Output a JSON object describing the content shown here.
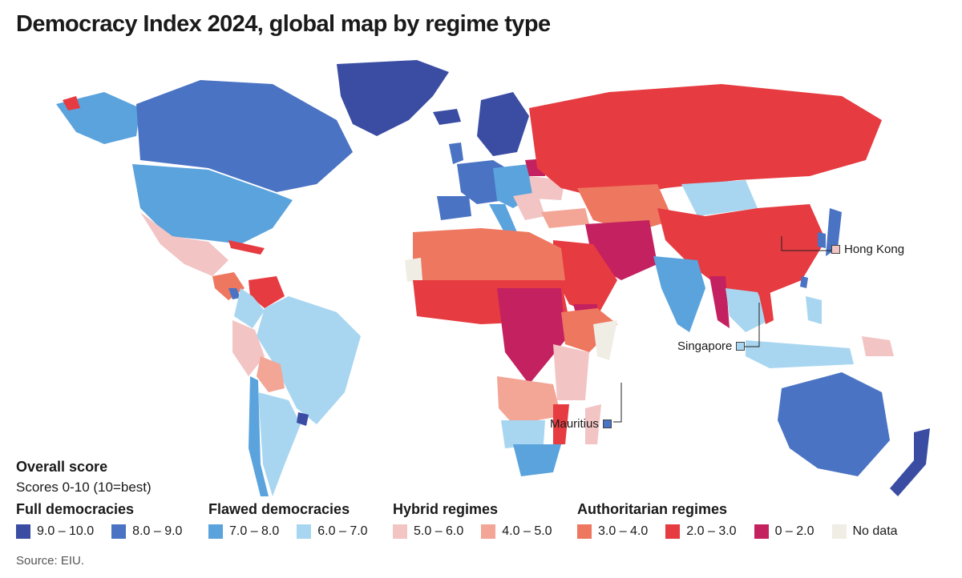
{
  "title": "Democracy Index 2024, global map by regime type",
  "legend": {
    "title": "Overall score",
    "subtitle": "Scores 0-10 (10=best)",
    "groups": [
      {
        "name": "Full democracies",
        "items": [
          {
            "label": "9.0 – 10.0",
            "color": "#3a4da3"
          },
          {
            "label": "8.0 – 9.0",
            "color": "#4a73c3"
          }
        ]
      },
      {
        "name": "Flawed democracies",
        "items": [
          {
            "label": "7.0 – 8.0",
            "color": "#5aa3dd"
          },
          {
            "label": "6.0 – 7.0",
            "color": "#a8d6f0"
          }
        ]
      },
      {
        "name": "Hybrid regimes",
        "items": [
          {
            "label": "5.0 – 6.0",
            "color": "#f2c4c4"
          },
          {
            "label": "4.0 – 5.0",
            "color": "#f3a596"
          }
        ]
      },
      {
        "name": "Authoritarian regimes",
        "items": [
          {
            "label": "3.0 – 4.0",
            "color": "#ee7760"
          },
          {
            "label": "2.0 – 3.0",
            "color": "#e63b40"
          },
          {
            "label": "0 – 2.0",
            "color": "#c42160"
          },
          {
            "label": "No data",
            "color": "#efede4"
          }
        ]
      }
    ]
  },
  "callouts": {
    "hong_kong": {
      "label": "Hong Kong",
      "color": "#f2c4c4"
    },
    "singapore": {
      "label": "Singapore",
      "color": "#a8d6f0"
    },
    "mauritius": {
      "label": "Mauritius",
      "color": "#4a73c3"
    }
  },
  "source": "Source: EIU."
}
